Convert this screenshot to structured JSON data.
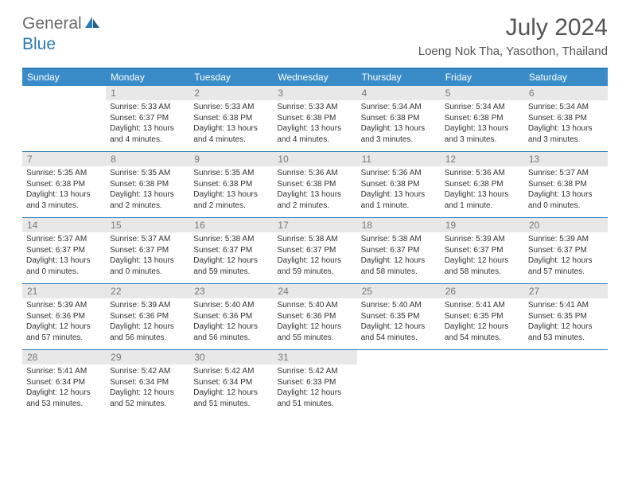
{
  "logo": {
    "general": "General",
    "blue": "Blue"
  },
  "title": "July 2024",
  "location": "Loeng Nok Tha, Yasothon, Thailand",
  "colors": {
    "header_bg": "#3a8cc9",
    "accent_border": "#2a7ab9",
    "daynum_bg": "#e8e8e8",
    "text": "#333333",
    "muted": "#777777"
  },
  "day_headers": [
    "Sunday",
    "Monday",
    "Tuesday",
    "Wednesday",
    "Thursday",
    "Friday",
    "Saturday"
  ],
  "weeks": [
    [
      {
        "blank": true
      },
      {
        "num": "1",
        "sunrise": "Sunrise: 5:33 AM",
        "sunset": "Sunset: 6:37 PM",
        "daylight1": "Daylight: 13 hours",
        "daylight2": "and 4 minutes."
      },
      {
        "num": "2",
        "sunrise": "Sunrise: 5:33 AM",
        "sunset": "Sunset: 6:38 PM",
        "daylight1": "Daylight: 13 hours",
        "daylight2": "and 4 minutes."
      },
      {
        "num": "3",
        "sunrise": "Sunrise: 5:33 AM",
        "sunset": "Sunset: 6:38 PM",
        "daylight1": "Daylight: 13 hours",
        "daylight2": "and 4 minutes."
      },
      {
        "num": "4",
        "sunrise": "Sunrise: 5:34 AM",
        "sunset": "Sunset: 6:38 PM",
        "daylight1": "Daylight: 13 hours",
        "daylight2": "and 3 minutes."
      },
      {
        "num": "5",
        "sunrise": "Sunrise: 5:34 AM",
        "sunset": "Sunset: 6:38 PM",
        "daylight1": "Daylight: 13 hours",
        "daylight2": "and 3 minutes."
      },
      {
        "num": "6",
        "sunrise": "Sunrise: 5:34 AM",
        "sunset": "Sunset: 6:38 PM",
        "daylight1": "Daylight: 13 hours",
        "daylight2": "and 3 minutes."
      }
    ],
    [
      {
        "num": "7",
        "sunrise": "Sunrise: 5:35 AM",
        "sunset": "Sunset: 6:38 PM",
        "daylight1": "Daylight: 13 hours",
        "daylight2": "and 3 minutes."
      },
      {
        "num": "8",
        "sunrise": "Sunrise: 5:35 AM",
        "sunset": "Sunset: 6:38 PM",
        "daylight1": "Daylight: 13 hours",
        "daylight2": "and 2 minutes."
      },
      {
        "num": "9",
        "sunrise": "Sunrise: 5:35 AM",
        "sunset": "Sunset: 6:38 PM",
        "daylight1": "Daylight: 13 hours",
        "daylight2": "and 2 minutes."
      },
      {
        "num": "10",
        "sunrise": "Sunrise: 5:36 AM",
        "sunset": "Sunset: 6:38 PM",
        "daylight1": "Daylight: 13 hours",
        "daylight2": "and 2 minutes."
      },
      {
        "num": "11",
        "sunrise": "Sunrise: 5:36 AM",
        "sunset": "Sunset: 6:38 PM",
        "daylight1": "Daylight: 13 hours",
        "daylight2": "and 1 minute."
      },
      {
        "num": "12",
        "sunrise": "Sunrise: 5:36 AM",
        "sunset": "Sunset: 6:38 PM",
        "daylight1": "Daylight: 13 hours",
        "daylight2": "and 1 minute."
      },
      {
        "num": "13",
        "sunrise": "Sunrise: 5:37 AM",
        "sunset": "Sunset: 6:38 PM",
        "daylight1": "Daylight: 13 hours",
        "daylight2": "and 0 minutes."
      }
    ],
    [
      {
        "num": "14",
        "sunrise": "Sunrise: 5:37 AM",
        "sunset": "Sunset: 6:37 PM",
        "daylight1": "Daylight: 13 hours",
        "daylight2": "and 0 minutes."
      },
      {
        "num": "15",
        "sunrise": "Sunrise: 5:37 AM",
        "sunset": "Sunset: 6:37 PM",
        "daylight1": "Daylight: 13 hours",
        "daylight2": "and 0 minutes."
      },
      {
        "num": "16",
        "sunrise": "Sunrise: 5:38 AM",
        "sunset": "Sunset: 6:37 PM",
        "daylight1": "Daylight: 12 hours",
        "daylight2": "and 59 minutes."
      },
      {
        "num": "17",
        "sunrise": "Sunrise: 5:38 AM",
        "sunset": "Sunset: 6:37 PM",
        "daylight1": "Daylight: 12 hours",
        "daylight2": "and 59 minutes."
      },
      {
        "num": "18",
        "sunrise": "Sunrise: 5:38 AM",
        "sunset": "Sunset: 6:37 PM",
        "daylight1": "Daylight: 12 hours",
        "daylight2": "and 58 minutes."
      },
      {
        "num": "19",
        "sunrise": "Sunrise: 5:39 AM",
        "sunset": "Sunset: 6:37 PM",
        "daylight1": "Daylight: 12 hours",
        "daylight2": "and 58 minutes."
      },
      {
        "num": "20",
        "sunrise": "Sunrise: 5:39 AM",
        "sunset": "Sunset: 6:37 PM",
        "daylight1": "Daylight: 12 hours",
        "daylight2": "and 57 minutes."
      }
    ],
    [
      {
        "num": "21",
        "sunrise": "Sunrise: 5:39 AM",
        "sunset": "Sunset: 6:36 PM",
        "daylight1": "Daylight: 12 hours",
        "daylight2": "and 57 minutes."
      },
      {
        "num": "22",
        "sunrise": "Sunrise: 5:39 AM",
        "sunset": "Sunset: 6:36 PM",
        "daylight1": "Daylight: 12 hours",
        "daylight2": "and 56 minutes."
      },
      {
        "num": "23",
        "sunrise": "Sunrise: 5:40 AM",
        "sunset": "Sunset: 6:36 PM",
        "daylight1": "Daylight: 12 hours",
        "daylight2": "and 56 minutes."
      },
      {
        "num": "24",
        "sunrise": "Sunrise: 5:40 AM",
        "sunset": "Sunset: 6:36 PM",
        "daylight1": "Daylight: 12 hours",
        "daylight2": "and 55 minutes."
      },
      {
        "num": "25",
        "sunrise": "Sunrise: 5:40 AM",
        "sunset": "Sunset: 6:35 PM",
        "daylight1": "Daylight: 12 hours",
        "daylight2": "and 54 minutes."
      },
      {
        "num": "26",
        "sunrise": "Sunrise: 5:41 AM",
        "sunset": "Sunset: 6:35 PM",
        "daylight1": "Daylight: 12 hours",
        "daylight2": "and 54 minutes."
      },
      {
        "num": "27",
        "sunrise": "Sunrise: 5:41 AM",
        "sunset": "Sunset: 6:35 PM",
        "daylight1": "Daylight: 12 hours",
        "daylight2": "and 53 minutes."
      }
    ],
    [
      {
        "num": "28",
        "sunrise": "Sunrise: 5:41 AM",
        "sunset": "Sunset: 6:34 PM",
        "daylight1": "Daylight: 12 hours",
        "daylight2": "and 53 minutes."
      },
      {
        "num": "29",
        "sunrise": "Sunrise: 5:42 AM",
        "sunset": "Sunset: 6:34 PM",
        "daylight1": "Daylight: 12 hours",
        "daylight2": "and 52 minutes."
      },
      {
        "num": "30",
        "sunrise": "Sunrise: 5:42 AM",
        "sunset": "Sunset: 6:34 PM",
        "daylight1": "Daylight: 12 hours",
        "daylight2": "and 51 minutes."
      },
      {
        "num": "31",
        "sunrise": "Sunrise: 5:42 AM",
        "sunset": "Sunset: 6:33 PM",
        "daylight1": "Daylight: 12 hours",
        "daylight2": "and 51 minutes."
      },
      {
        "blank": true
      },
      {
        "blank": true
      },
      {
        "blank": true
      }
    ]
  ]
}
